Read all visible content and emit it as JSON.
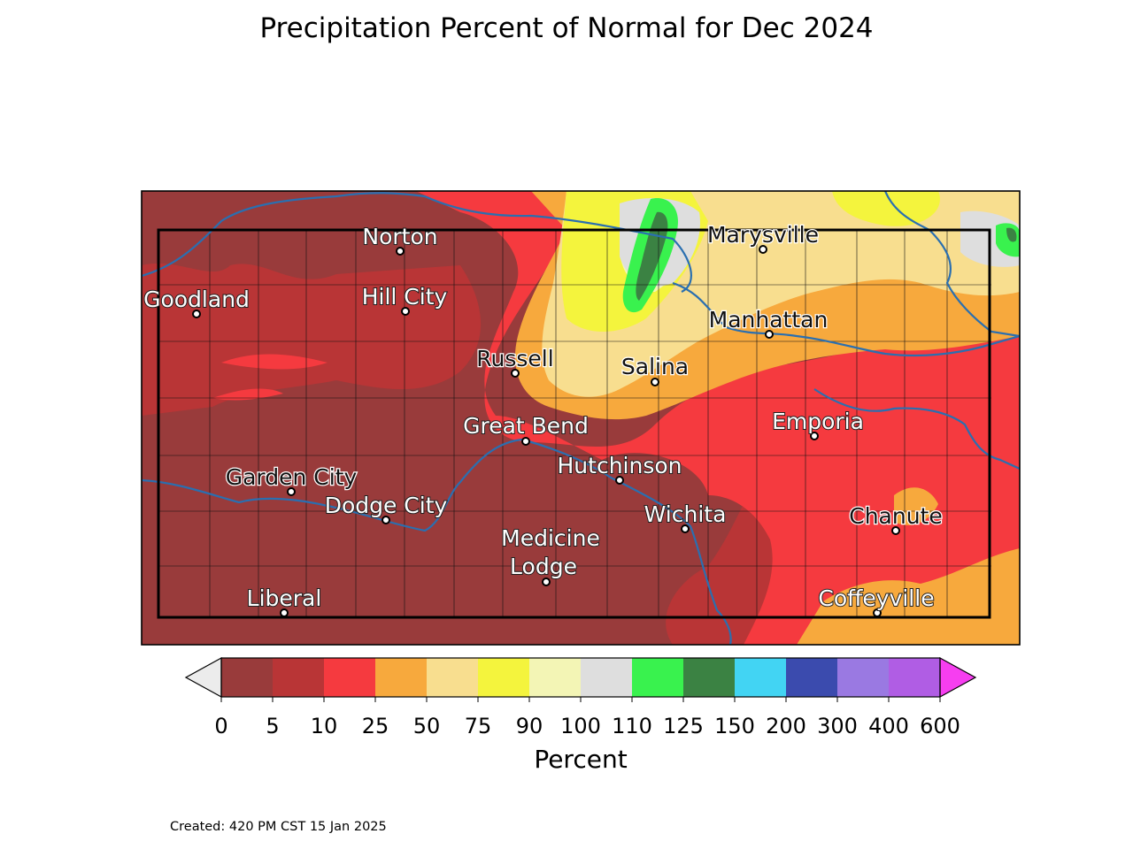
{
  "title": "Precipitation Percent of Normal for Dec 2024",
  "colorbar": {
    "label": "Percent",
    "ticks": [
      "0",
      "5",
      "10",
      "25",
      "50",
      "75",
      "90",
      "100",
      "110",
      "125",
      "150",
      "200",
      "300",
      "400",
      "600"
    ],
    "colors": [
      "#993b3b",
      "#b93536",
      "#f53a3f",
      "#f7a93d",
      "#f8de8f",
      "#f4f43d",
      "#f3f5b5",
      "#dedede",
      "#39f24e",
      "#3b8243",
      "#42d4f3",
      "#3b4bae",
      "#9a79e2",
      "#b05de4"
    ],
    "under_color": "#ececec",
    "over_color": "#f63ef0"
  },
  "cities": [
    {
      "name": "Goodland",
      "dark": false
    },
    {
      "name": "Norton",
      "dark": false
    },
    {
      "name": "Hill City",
      "dark": false
    },
    {
      "name": "Russell",
      "dark": true
    },
    {
      "name": "Salina",
      "dark": true
    },
    {
      "name": "Marysville",
      "dark": true
    },
    {
      "name": "Manhattan",
      "dark": true
    },
    {
      "name": "Great Bend",
      "dark": false
    },
    {
      "name": "Emporia",
      "dark": false
    },
    {
      "name": "Hutchinson",
      "dark": false
    },
    {
      "name": "Garden City",
      "dark": true
    },
    {
      "name": "Dodge City",
      "dark": false
    },
    {
      "name": "Wichita",
      "dark": false
    },
    {
      "name": "Chanute",
      "dark": true
    },
    {
      "name": "Medicine",
      "dark": false
    },
    {
      "name": "Lodge",
      "dark": false
    },
    {
      "name": "Liberal",
      "dark": false
    },
    {
      "name": "Coffeyville",
      "dark": false
    }
  ],
  "footer": {
    "created": "Created: 420 PM CST 15 Jan 2025"
  }
}
